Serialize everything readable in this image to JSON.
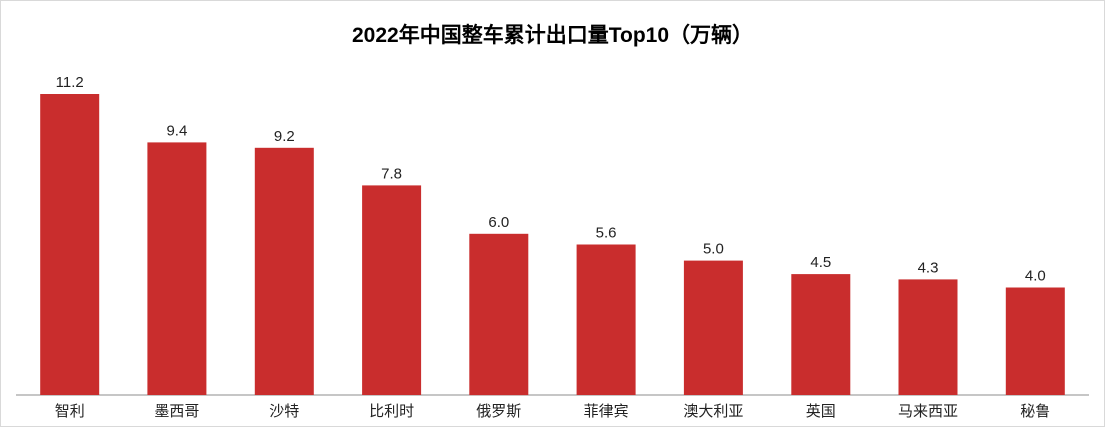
{
  "chart_data": {
    "type": "bar",
    "title": "2022年中国整车累计出口量Top10（万辆）",
    "categories": [
      "智利",
      "墨西哥",
      "沙特",
      "比利时",
      "俄罗斯",
      "菲律宾",
      "澳大利亚",
      "英国",
      "马来西亚",
      "秘鲁"
    ],
    "values": [
      11.2,
      9.4,
      9.2,
      7.8,
      6.0,
      5.6,
      5.0,
      4.5,
      4.3,
      4.0
    ],
    "value_labels": [
      "11.2",
      "9.4",
      "9.2",
      "7.8",
      "6.0",
      "5.6",
      "5.0",
      "4.5",
      "4.3",
      "4.0"
    ],
    "xlabel": "",
    "ylabel": "",
    "ylim": [
      0,
      11.2
    ],
    "grid": false,
    "legend": "none",
    "bar_color": "#c92d2d"
  }
}
